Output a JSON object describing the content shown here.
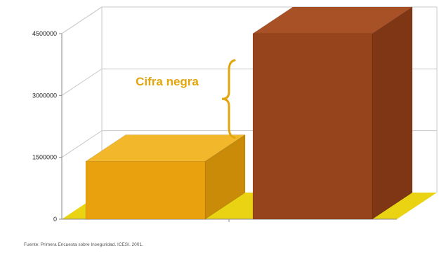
{
  "chart_data": {
    "type": "bar",
    "style": "3d",
    "categories": [
      "",
      ""
    ],
    "values": [
      1400000,
      4500000
    ],
    "ylim": [
      0,
      4500000
    ],
    "yticks": [
      0,
      1500000,
      3000000,
      4500000
    ],
    "ytick_labels": [
      "0",
      "1500000",
      "3000000",
      "4500000"
    ],
    "grid": true,
    "colors": {
      "bar1_front": "#E9A20E",
      "bar1_top": "#F2B72A",
      "bar1_side": "#C98B08",
      "bar2_front": "#96441C",
      "bar2_top": "#A95126",
      "bar2_side": "#7E3614",
      "floor": "#E9D313",
      "gridline": "#c8c8c8",
      "annotation": "#E2A60C"
    },
    "annotation": {
      "text": "Cifra negra",
      "spans": [
        1400000,
        4500000
      ]
    }
  },
  "source_note": "Fuente: Primera Encuesta sobre Inseguridad. ICESI. 2001."
}
